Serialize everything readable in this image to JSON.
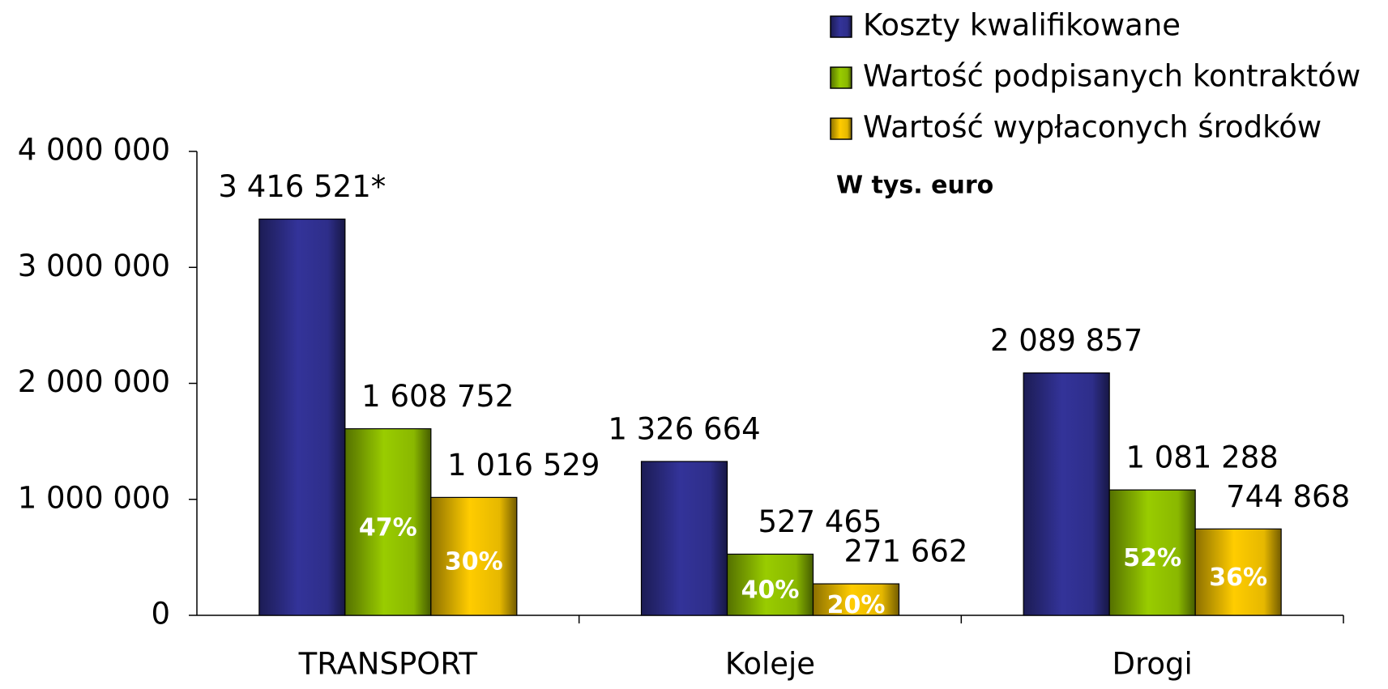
{
  "chart_data": {
    "type": "bar",
    "annotation": "W tys. euro",
    "categories": [
      "TRANSPORT",
      "Koleje",
      "Drogi"
    ],
    "series": [
      {
        "name": "Koszty kwalifikowane",
        "color": "#333399",
        "values": [
          3416521,
          1326664,
          2089857
        ],
        "value_labels": [
          "3 416 521*",
          "1 326 664",
          "2 089 857"
        ]
      },
      {
        "name": "Wartość podpisanych kontraktów",
        "color": "#99cc00",
        "values": [
          1608752,
          527465,
          1081288
        ],
        "value_labels": [
          "1 608 752",
          "527 465",
          "1 081 288"
        ],
        "share_values": [
          47,
          40,
          52
        ],
        "share_labels": [
          "47%",
          "40%",
          "52%"
        ]
      },
      {
        "name": "Wartość wypłaconych środków",
        "color": "#ffcc00",
        "values": [
          1016529,
          271662,
          744868
        ],
        "value_labels": [
          "1 016 529",
          "271 662",
          "744 868"
        ],
        "share_values": [
          30,
          20,
          36
        ],
        "share_labels": [
          "30%",
          "20%",
          "36%"
        ]
      }
    ],
    "ylim": [
      0,
      4000000
    ],
    "yticks": [
      0,
      {
        "value": 1000000,
        "label": "1 000 000"
      },
      {
        "value": 2000000,
        "label": "2 000 000"
      },
      {
        "value": 3000000,
        "label": "3 000 000"
      },
      {
        "value": 4000000,
        "label": "4 000 000"
      }
    ],
    "legend": "top-right"
  }
}
